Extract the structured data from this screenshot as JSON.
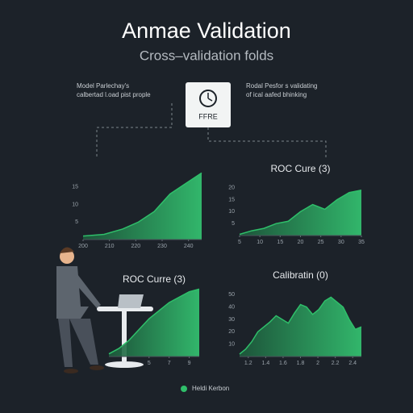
{
  "title": "Anmae Validation",
  "subtitle": "Cross–validation folds",
  "notes": [
    [
      "Model Parlechay's",
      "calbertad l.oad pist prople"
    ],
    [
      "Rodal Pesfor s validating",
      "of ical aafed bhinking"
    ]
  ],
  "box_label": "FFRE",
  "legend": "Heldi Kerbon",
  "chart_data": [
    {
      "type": "area",
      "color": "#2fbf6a",
      "x": [
        200,
        208,
        215,
        221,
        227,
        233,
        239,
        245
      ],
      "values": [
        1,
        1.5,
        3,
        5,
        8,
        13,
        16,
        19
      ],
      "xlim": [
        200,
        245
      ],
      "ylim": [
        0,
        20
      ],
      "xticks": [
        200,
        210,
        220,
        230,
        240
      ],
      "yticks": [
        5,
        10,
        15
      ]
    },
    {
      "type": "area",
      "title": "ROC Cure (3)",
      "color": "#2fbf6a",
      "x": [
        5,
        8,
        11,
        14,
        17,
        20,
        23,
        26,
        29,
        32,
        35
      ],
      "values": [
        0.5,
        2,
        3,
        5,
        6,
        10,
        13,
        11,
        15,
        18,
        19
      ],
      "xlim": [
        5,
        35
      ],
      "ylim": [
        0,
        25
      ],
      "xticks": [
        5,
        10,
        15,
        20,
        25,
        30,
        35
      ],
      "yticks": [
        5,
        10,
        15,
        20
      ]
    },
    {
      "type": "area",
      "title": "ROC Curre (3)",
      "color": "#2fbf6a",
      "x": [
        1,
        2,
        3,
        4,
        5,
        6,
        7,
        8,
        9,
        10
      ],
      "values": [
        1,
        3,
        6,
        10,
        14,
        17,
        20,
        22,
        24,
        25
      ],
      "xlim": [
        1,
        10
      ],
      "ylim": [
        0,
        26
      ],
      "xticks": [
        5,
        7,
        9
      ],
      "yticks": []
    },
    {
      "type": "area",
      "title": "Calibratin (0)",
      "color": "#2fbf6a",
      "x": [
        1.1,
        1.17,
        1.24,
        1.31,
        1.38,
        1.45,
        1.52,
        1.59,
        1.66,
        1.73,
        1.8,
        1.87,
        1.94,
        2.01,
        2.08,
        2.15,
        2.22,
        2.29,
        2.36,
        2.43,
        2.5
      ],
      "values": [
        2,
        6,
        12,
        20,
        24,
        28,
        33,
        30,
        27,
        35,
        42,
        40,
        34,
        38,
        45,
        48,
        44,
        40,
        30,
        22,
        24
      ],
      "xlim": [
        1.1,
        2.5
      ],
      "ylim": [
        0,
        60
      ],
      "xticks": [
        1.2,
        1.4,
        1.6,
        1.8,
        2.0,
        2.2,
        2.4
      ],
      "yticks": [
        10,
        20,
        30,
        40,
        50
      ]
    }
  ]
}
